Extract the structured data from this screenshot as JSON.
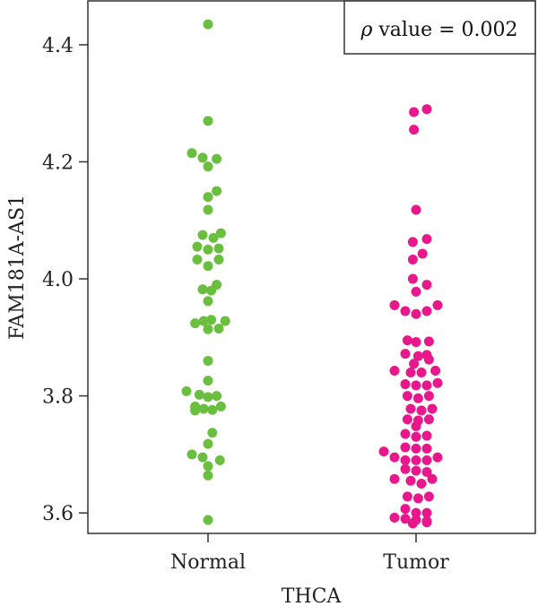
{
  "chart_data": {
    "type": "scatter",
    "xlabel": "THCA",
    "ylabel": "FAM181A-AS1",
    "ylim": [
      3.565,
      4.475
    ],
    "yticks": [
      "3.6",
      "3.8",
      "4.0",
      "4.2",
      "4.4"
    ],
    "categories": [
      "Normal",
      "Tumor"
    ],
    "annotation": {
      "symbol": "ρ",
      "text": " value = 0.002"
    },
    "grid": false,
    "series": [
      {
        "name": "Normal",
        "color": "#6abf3e",
        "points": [
          {
            "cat": 0,
            "dx": 0.0,
            "y": 4.435
          },
          {
            "cat": 0,
            "dx": 0.0,
            "y": 4.27
          },
          {
            "cat": 0,
            "dx": -1.5,
            "y": 4.215
          },
          {
            "cat": 0,
            "dx": -0.5,
            "y": 4.207
          },
          {
            "cat": 0,
            "dx": 0.8,
            "y": 4.205
          },
          {
            "cat": 0,
            "dx": 0.0,
            "y": 4.192
          },
          {
            "cat": 0,
            "dx": 0.8,
            "y": 4.15
          },
          {
            "cat": 0,
            "dx": 0.0,
            "y": 4.14
          },
          {
            "cat": 0,
            "dx": 0.0,
            "y": 4.118
          },
          {
            "cat": 0,
            "dx": -0.5,
            "y": 4.075
          },
          {
            "cat": 0,
            "dx": 0.5,
            "y": 4.07
          },
          {
            "cat": 0,
            "dx": 1.2,
            "y": 4.078
          },
          {
            "cat": 0,
            "dx": -1.0,
            "y": 4.055
          },
          {
            "cat": 0,
            "dx": 0.0,
            "y": 4.05
          },
          {
            "cat": 0,
            "dx": 1.0,
            "y": 4.052
          },
          {
            "cat": 0,
            "dx": -1.0,
            "y": 4.033
          },
          {
            "cat": 0,
            "dx": 1.0,
            "y": 4.033
          },
          {
            "cat": 0,
            "dx": 0.0,
            "y": 4.022
          },
          {
            "cat": 0,
            "dx": 0.8,
            "y": 3.99
          },
          {
            "cat": 0,
            "dx": -0.5,
            "y": 3.982
          },
          {
            "cat": 0,
            "dx": 0.3,
            "y": 3.98
          },
          {
            "cat": 0,
            "dx": 0.0,
            "y": 3.962
          },
          {
            "cat": 0,
            "dx": -1.2,
            "y": 3.924
          },
          {
            "cat": 0,
            "dx": -0.4,
            "y": 3.928
          },
          {
            "cat": 0,
            "dx": 0.3,
            "y": 3.93
          },
          {
            "cat": 0,
            "dx": 1.6,
            "y": 3.928
          },
          {
            "cat": 0,
            "dx": 0.0,
            "y": 3.914
          },
          {
            "cat": 0,
            "dx": 1.0,
            "y": 3.915
          },
          {
            "cat": 0,
            "dx": 0.0,
            "y": 3.86
          },
          {
            "cat": 0,
            "dx": 0.0,
            "y": 3.826
          },
          {
            "cat": 0,
            "dx": -2.0,
            "y": 3.808
          },
          {
            "cat": 0,
            "dx": -0.8,
            "y": 3.802
          },
          {
            "cat": 0,
            "dx": 0.0,
            "y": 3.798
          },
          {
            "cat": 0,
            "dx": 0.8,
            "y": 3.8
          },
          {
            "cat": 0,
            "dx": -1.2,
            "y": 3.782
          },
          {
            "cat": 0,
            "dx": -0.4,
            "y": 3.778
          },
          {
            "cat": 0,
            "dx": 0.4,
            "y": 3.776
          },
          {
            "cat": 0,
            "dx": 1.2,
            "y": 3.782
          },
          {
            "cat": 0,
            "dx": -1.2,
            "y": 3.775
          },
          {
            "cat": 0,
            "dx": 0.4,
            "y": 3.737
          },
          {
            "cat": 0,
            "dx": 0.0,
            "y": 3.718
          },
          {
            "cat": 0,
            "dx": -1.5,
            "y": 3.7
          },
          {
            "cat": 0,
            "dx": -0.5,
            "y": 3.695
          },
          {
            "cat": 0,
            "dx": 1.1,
            "y": 3.69
          },
          {
            "cat": 0,
            "dx": 0.0,
            "y": 3.68
          },
          {
            "cat": 0,
            "dx": 0.0,
            "y": 3.664
          },
          {
            "cat": 0,
            "dx": 0.0,
            "y": 3.588
          }
        ]
      },
      {
        "name": "Tumor",
        "color": "#e8188c",
        "points": [
          {
            "cat": 1,
            "dx": -0.2,
            "y": 4.285
          },
          {
            "cat": 1,
            "dx": 1.0,
            "y": 4.29
          },
          {
            "cat": 1,
            "dx": -0.2,
            "y": 4.255
          },
          {
            "cat": 1,
            "dx": 0.0,
            "y": 4.118
          },
          {
            "cat": 1,
            "dx": -0.3,
            "y": 4.063
          },
          {
            "cat": 1,
            "dx": 1.0,
            "y": 4.068
          },
          {
            "cat": 1,
            "dx": 0.6,
            "y": 4.043
          },
          {
            "cat": 1,
            "dx": -0.3,
            "y": 4.033
          },
          {
            "cat": 1,
            "dx": -0.3,
            "y": 4.0
          },
          {
            "cat": 1,
            "dx": 1.0,
            "y": 3.99
          },
          {
            "cat": 1,
            "dx": 0.0,
            "y": 3.978
          },
          {
            "cat": 1,
            "dx": -2.0,
            "y": 3.955
          },
          {
            "cat": 1,
            "dx": -1.0,
            "y": 3.945
          },
          {
            "cat": 1,
            "dx": 0.0,
            "y": 3.94
          },
          {
            "cat": 1,
            "dx": 1.0,
            "y": 3.945
          },
          {
            "cat": 1,
            "dx": 2.0,
            "y": 3.955
          },
          {
            "cat": 1,
            "dx": -0.8,
            "y": 3.895
          },
          {
            "cat": 1,
            "dx": 0.0,
            "y": 3.892
          },
          {
            "cat": 1,
            "dx": 1.2,
            "y": 3.893
          },
          {
            "cat": 1,
            "dx": -1.0,
            "y": 3.872
          },
          {
            "cat": 1,
            "dx": 0.2,
            "y": 3.868
          },
          {
            "cat": 1,
            "dx": 1.0,
            "y": 3.87
          },
          {
            "cat": 1,
            "dx": -0.2,
            "y": 3.855
          },
          {
            "cat": 1,
            "dx": 1.2,
            "y": 3.862
          },
          {
            "cat": 1,
            "dx": -2.0,
            "y": 3.843
          },
          {
            "cat": 1,
            "dx": -0.5,
            "y": 3.84
          },
          {
            "cat": 1,
            "dx": 0.5,
            "y": 3.84
          },
          {
            "cat": 1,
            "dx": 1.8,
            "y": 3.843
          },
          {
            "cat": 1,
            "dx": -1.0,
            "y": 3.82
          },
          {
            "cat": 1,
            "dx": 0.0,
            "y": 3.818
          },
          {
            "cat": 1,
            "dx": 1.0,
            "y": 3.818
          },
          {
            "cat": 1,
            "dx": 2.0,
            "y": 3.822
          },
          {
            "cat": 1,
            "dx": -0.8,
            "y": 3.8
          },
          {
            "cat": 1,
            "dx": 0.2,
            "y": 3.796
          },
          {
            "cat": 1,
            "dx": 1.2,
            "y": 3.8
          },
          {
            "cat": 1,
            "dx": -0.5,
            "y": 3.778
          },
          {
            "cat": 1,
            "dx": 0.5,
            "y": 3.775
          },
          {
            "cat": 1,
            "dx": 1.5,
            "y": 3.778
          },
          {
            "cat": 1,
            "dx": -0.8,
            "y": 3.76
          },
          {
            "cat": 1,
            "dx": 0.2,
            "y": 3.758
          },
          {
            "cat": 1,
            "dx": 1.2,
            "y": 3.76
          },
          {
            "cat": 1,
            "dx": 0.0,
            "y": 3.748
          },
          {
            "cat": 1,
            "dx": -1.0,
            "y": 3.735
          },
          {
            "cat": 1,
            "dx": 0.0,
            "y": 3.73
          },
          {
            "cat": 1,
            "dx": 1.0,
            "y": 3.732
          },
          {
            "cat": 1,
            "dx": -1.0,
            "y": 3.712
          },
          {
            "cat": 1,
            "dx": 0.0,
            "y": 3.71
          },
          {
            "cat": 1,
            "dx": 1.0,
            "y": 3.71
          },
          {
            "cat": 1,
            "dx": -3.0,
            "y": 3.705
          },
          {
            "cat": 1,
            "dx": -2.0,
            "y": 3.695
          },
          {
            "cat": 1,
            "dx": -1.0,
            "y": 3.69
          },
          {
            "cat": 1,
            "dx": 0.0,
            "y": 3.69
          },
          {
            "cat": 1,
            "dx": 1.0,
            "y": 3.69
          },
          {
            "cat": 1,
            "dx": 2.0,
            "y": 3.695
          },
          {
            "cat": 1,
            "dx": -1.0,
            "y": 3.675
          },
          {
            "cat": 1,
            "dx": 0.0,
            "y": 3.672
          },
          {
            "cat": 1,
            "dx": 1.0,
            "y": 3.67
          },
          {
            "cat": 1,
            "dx": -2.0,
            "y": 3.658
          },
          {
            "cat": 1,
            "dx": -0.5,
            "y": 3.655
          },
          {
            "cat": 1,
            "dx": 0.5,
            "y": 3.65
          },
          {
            "cat": 1,
            "dx": 1.5,
            "y": 3.658
          },
          {
            "cat": 1,
            "dx": -0.8,
            "y": 3.628
          },
          {
            "cat": 1,
            "dx": 0.2,
            "y": 3.625
          },
          {
            "cat": 1,
            "dx": 1.2,
            "y": 3.628
          },
          {
            "cat": 1,
            "dx": -1.0,
            "y": 3.607
          },
          {
            "cat": 1,
            "dx": 0.0,
            "y": 3.6
          },
          {
            "cat": 1,
            "dx": 1.0,
            "y": 3.6
          },
          {
            "cat": 1,
            "dx": -2.0,
            "y": 3.592
          },
          {
            "cat": 1,
            "dx": -1.0,
            "y": 3.59
          },
          {
            "cat": 1,
            "dx": 0.0,
            "y": 3.588
          },
          {
            "cat": 1,
            "dx": 1.0,
            "y": 3.586
          },
          {
            "cat": 1,
            "dx": 1.0,
            "y": 3.584
          },
          {
            "cat": 1,
            "dx": -0.3,
            "y": 3.582
          }
        ]
      }
    ]
  }
}
